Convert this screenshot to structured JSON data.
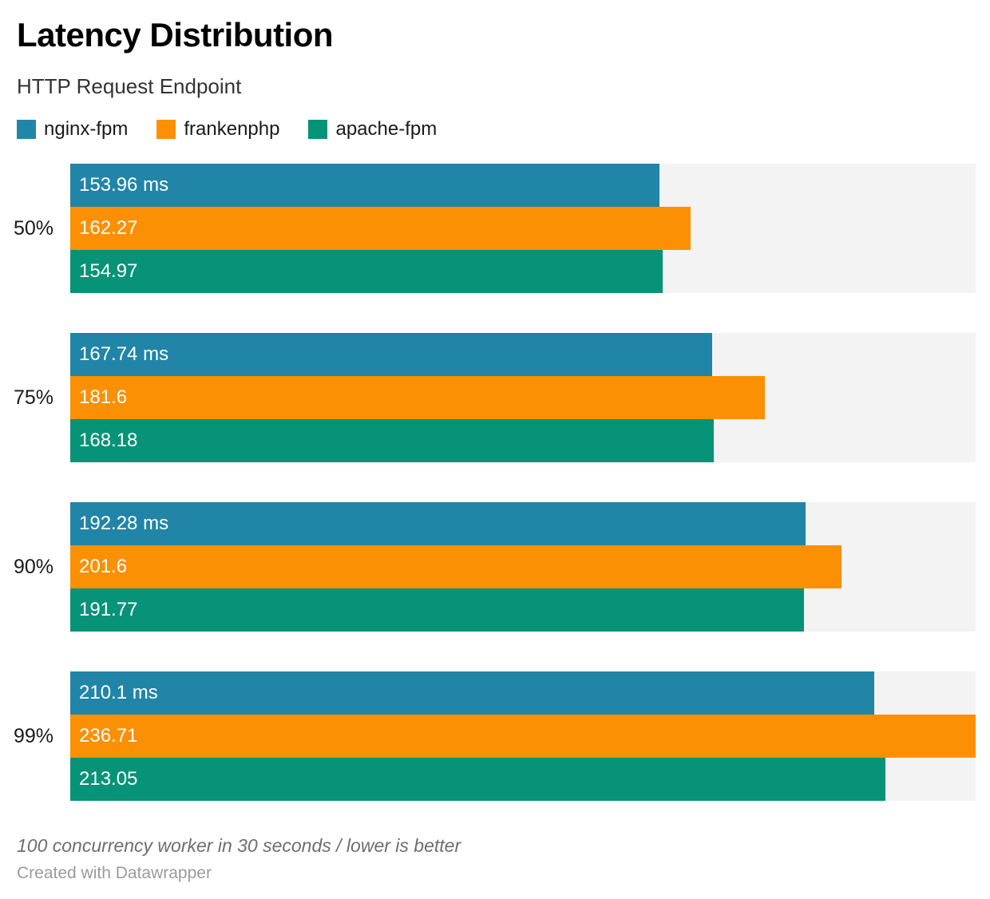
{
  "header": {
    "title": "Latency Distribution",
    "subtitle": "HTTP Request Endpoint"
  },
  "legend": [
    {
      "label": "nginx-fpm",
      "color": "#2185a7"
    },
    {
      "label": "frankenphp",
      "color": "#fb9005"
    },
    {
      "label": "apache-fpm",
      "color": "#069377"
    }
  ],
  "chart_data": {
    "type": "bar",
    "orientation": "horizontal",
    "title": "Latency Distribution",
    "subtitle": "HTTP Request Endpoint",
    "categories": [
      "50%",
      "75%",
      "90%",
      "99%"
    ],
    "series": [
      {
        "name": "nginx-fpm",
        "color": "#2185a7",
        "values": [
          153.96,
          167.74,
          192.28,
          210.1
        ],
        "labels": [
          "153.96 ms",
          "167.74 ms",
          "192.28 ms",
          "210.1 ms"
        ]
      },
      {
        "name": "frankenphp",
        "color": "#fb9005",
        "values": [
          162.27,
          181.6,
          201.6,
          236.71
        ],
        "labels": [
          "162.27",
          "181.6",
          "201.6",
          "236.71"
        ]
      },
      {
        "name": "apache-fpm",
        "color": "#069377",
        "values": [
          154.97,
          168.18,
          191.77,
          213.05
        ],
        "labels": [
          "154.97",
          "168.18",
          "191.77",
          "213.05"
        ]
      }
    ],
    "unit": "ms",
    "xlim": [
      0,
      236.71
    ],
    "grid": false,
    "legend_position": "top",
    "track_color": "#f3f3f3",
    "value_label_color": "#ffffff"
  },
  "footer": {
    "note": "100 concurrency worker in 30 seconds / lower is better",
    "credit": "Created with Datawrapper"
  }
}
